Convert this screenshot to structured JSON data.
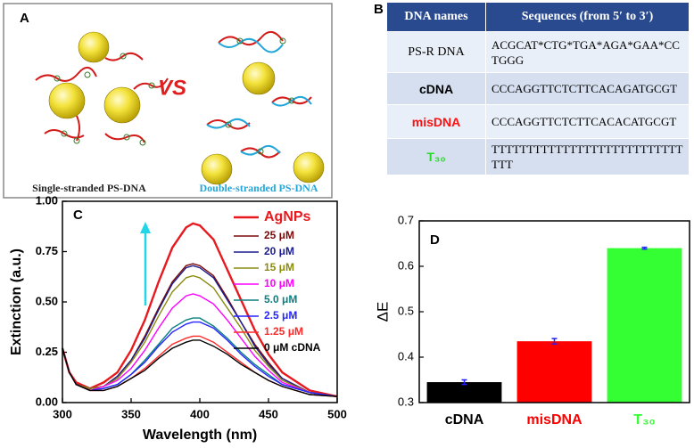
{
  "panel_a": {
    "label": "A",
    "vs": "VS",
    "left_caption": "Single-stranded PS-DNA",
    "right_caption": "Double-stranded PS-DNA"
  },
  "table": {
    "label": "B",
    "header": [
      "DNA names",
      "Sequences (from 5′ to 3′)"
    ],
    "rows": [
      [
        "PS-R DNA",
        "ACGCAT*CTG*TGA*AGA*GAA*CCTGGG"
      ],
      [
        "cDNA",
        "CCCAGGTTCTCTTCACAGATGCGT"
      ],
      [
        "misDNA",
        "CCCAGGTTCTCTTCACACATGCGT"
      ],
      [
        "T₃₀",
        "TTTTTTTTTTTTTTTTTTTTTTTTTTTTTT"
      ]
    ]
  },
  "chart_data": [
    {
      "type": "line",
      "label": "C",
      "x_label": "Wavelength (nm)",
      "y_label": "Extinction (a.u.)",
      "x": [
        300,
        305,
        310,
        320,
        330,
        340,
        350,
        360,
        370,
        380,
        390,
        395,
        400,
        410,
        420,
        430,
        440,
        450,
        460,
        480,
        500
      ],
      "xlim": [
        300,
        500
      ],
      "xticks": [
        300,
        350,
        400,
        450,
        500
      ],
      "ylim": [
        0,
        1
      ],
      "yticks": [
        {
          "value": 0,
          "label": "0.00"
        },
        {
          "value": 0.25,
          "label": "0.25"
        },
        {
          "value": 0.5,
          "label": "0.50"
        },
        {
          "value": 0.75,
          "label": "0.75"
        },
        {
          "value": 1,
          "label": "1.00"
        }
      ],
      "legend": "upper right",
      "series": [
        {
          "name": "AgNPs",
          "color": "#e8191e",
          "values": [
            0.27,
            0.15,
            0.1,
            0.07,
            0.1,
            0.15,
            0.26,
            0.41,
            0.6,
            0.77,
            0.87,
            0.89,
            0.88,
            0.81,
            0.66,
            0.51,
            0.36,
            0.24,
            0.15,
            0.06,
            0.03
          ]
        },
        {
          "name": "25 μM",
          "color": "#7a0a0a",
          "values": [
            0.27,
            0.15,
            0.09,
            0.07,
            0.08,
            0.13,
            0.21,
            0.33,
            0.47,
            0.6,
            0.68,
            0.69,
            0.68,
            0.63,
            0.52,
            0.4,
            0.29,
            0.2,
            0.12,
            0.05,
            0.03
          ]
        },
        {
          "name": "20 μM",
          "color": "#1c1c8c",
          "values": [
            0.27,
            0.15,
            0.09,
            0.07,
            0.08,
            0.13,
            0.21,
            0.32,
            0.46,
            0.59,
            0.67,
            0.68,
            0.67,
            0.62,
            0.51,
            0.4,
            0.28,
            0.19,
            0.12,
            0.05,
            0.03
          ]
        },
        {
          "name": "15 μM",
          "color": "#8a8a10",
          "values": [
            0.27,
            0.15,
            0.09,
            0.07,
            0.08,
            0.12,
            0.2,
            0.3,
            0.43,
            0.55,
            0.62,
            0.63,
            0.62,
            0.57,
            0.47,
            0.37,
            0.26,
            0.18,
            0.11,
            0.05,
            0.03
          ]
        },
        {
          "name": "10 μM",
          "color": "#ff00ff",
          "values": [
            0.27,
            0.15,
            0.09,
            0.06,
            0.08,
            0.11,
            0.17,
            0.26,
            0.37,
            0.47,
            0.53,
            0.54,
            0.53,
            0.49,
            0.41,
            0.32,
            0.23,
            0.16,
            0.1,
            0.05,
            0.03
          ]
        },
        {
          "name": "5.0 μM",
          "color": "#0b7f7f",
          "values": [
            0.27,
            0.15,
            0.09,
            0.06,
            0.07,
            0.09,
            0.14,
            0.21,
            0.29,
            0.37,
            0.41,
            0.42,
            0.42,
            0.38,
            0.32,
            0.25,
            0.19,
            0.14,
            0.09,
            0.05,
            0.03
          ]
        },
        {
          "name": "2.5 μM",
          "color": "#2525ff",
          "values": [
            0.27,
            0.15,
            0.09,
            0.06,
            0.07,
            0.09,
            0.14,
            0.2,
            0.28,
            0.35,
            0.39,
            0.4,
            0.4,
            0.37,
            0.31,
            0.24,
            0.18,
            0.13,
            0.09,
            0.05,
            0.03
          ]
        },
        {
          "name": "1.25 μM",
          "color": "#ff2a2a",
          "values": [
            0.27,
            0.15,
            0.09,
            0.06,
            0.06,
            0.08,
            0.12,
            0.17,
            0.23,
            0.29,
            0.32,
            0.33,
            0.33,
            0.3,
            0.25,
            0.2,
            0.15,
            0.11,
            0.08,
            0.04,
            0.03
          ]
        },
        {
          "name": "0 μM cDNA",
          "color": "#000000",
          "values": [
            0.27,
            0.15,
            0.09,
            0.06,
            0.06,
            0.08,
            0.12,
            0.16,
            0.22,
            0.27,
            0.3,
            0.31,
            0.31,
            0.28,
            0.24,
            0.19,
            0.15,
            0.11,
            0.08,
            0.04,
            0.03
          ]
        }
      ]
    },
    {
      "type": "bar",
      "label": "D",
      "y_label": "ΔE",
      "categories": [
        "cDNA",
        "misDNA",
        "T₃₀"
      ],
      "values": [
        0.345,
        0.435,
        0.64
      ],
      "errors": [
        0.005,
        0.006,
        0.002
      ],
      "colors": [
        "#000000",
        "#ff0000",
        "#33ff33"
      ],
      "error_color": "#2020ff",
      "ylim": [
        0.3,
        0.7
      ],
      "yticks": [
        0.3,
        0.4,
        0.5,
        0.6,
        0.7
      ]
    }
  ]
}
